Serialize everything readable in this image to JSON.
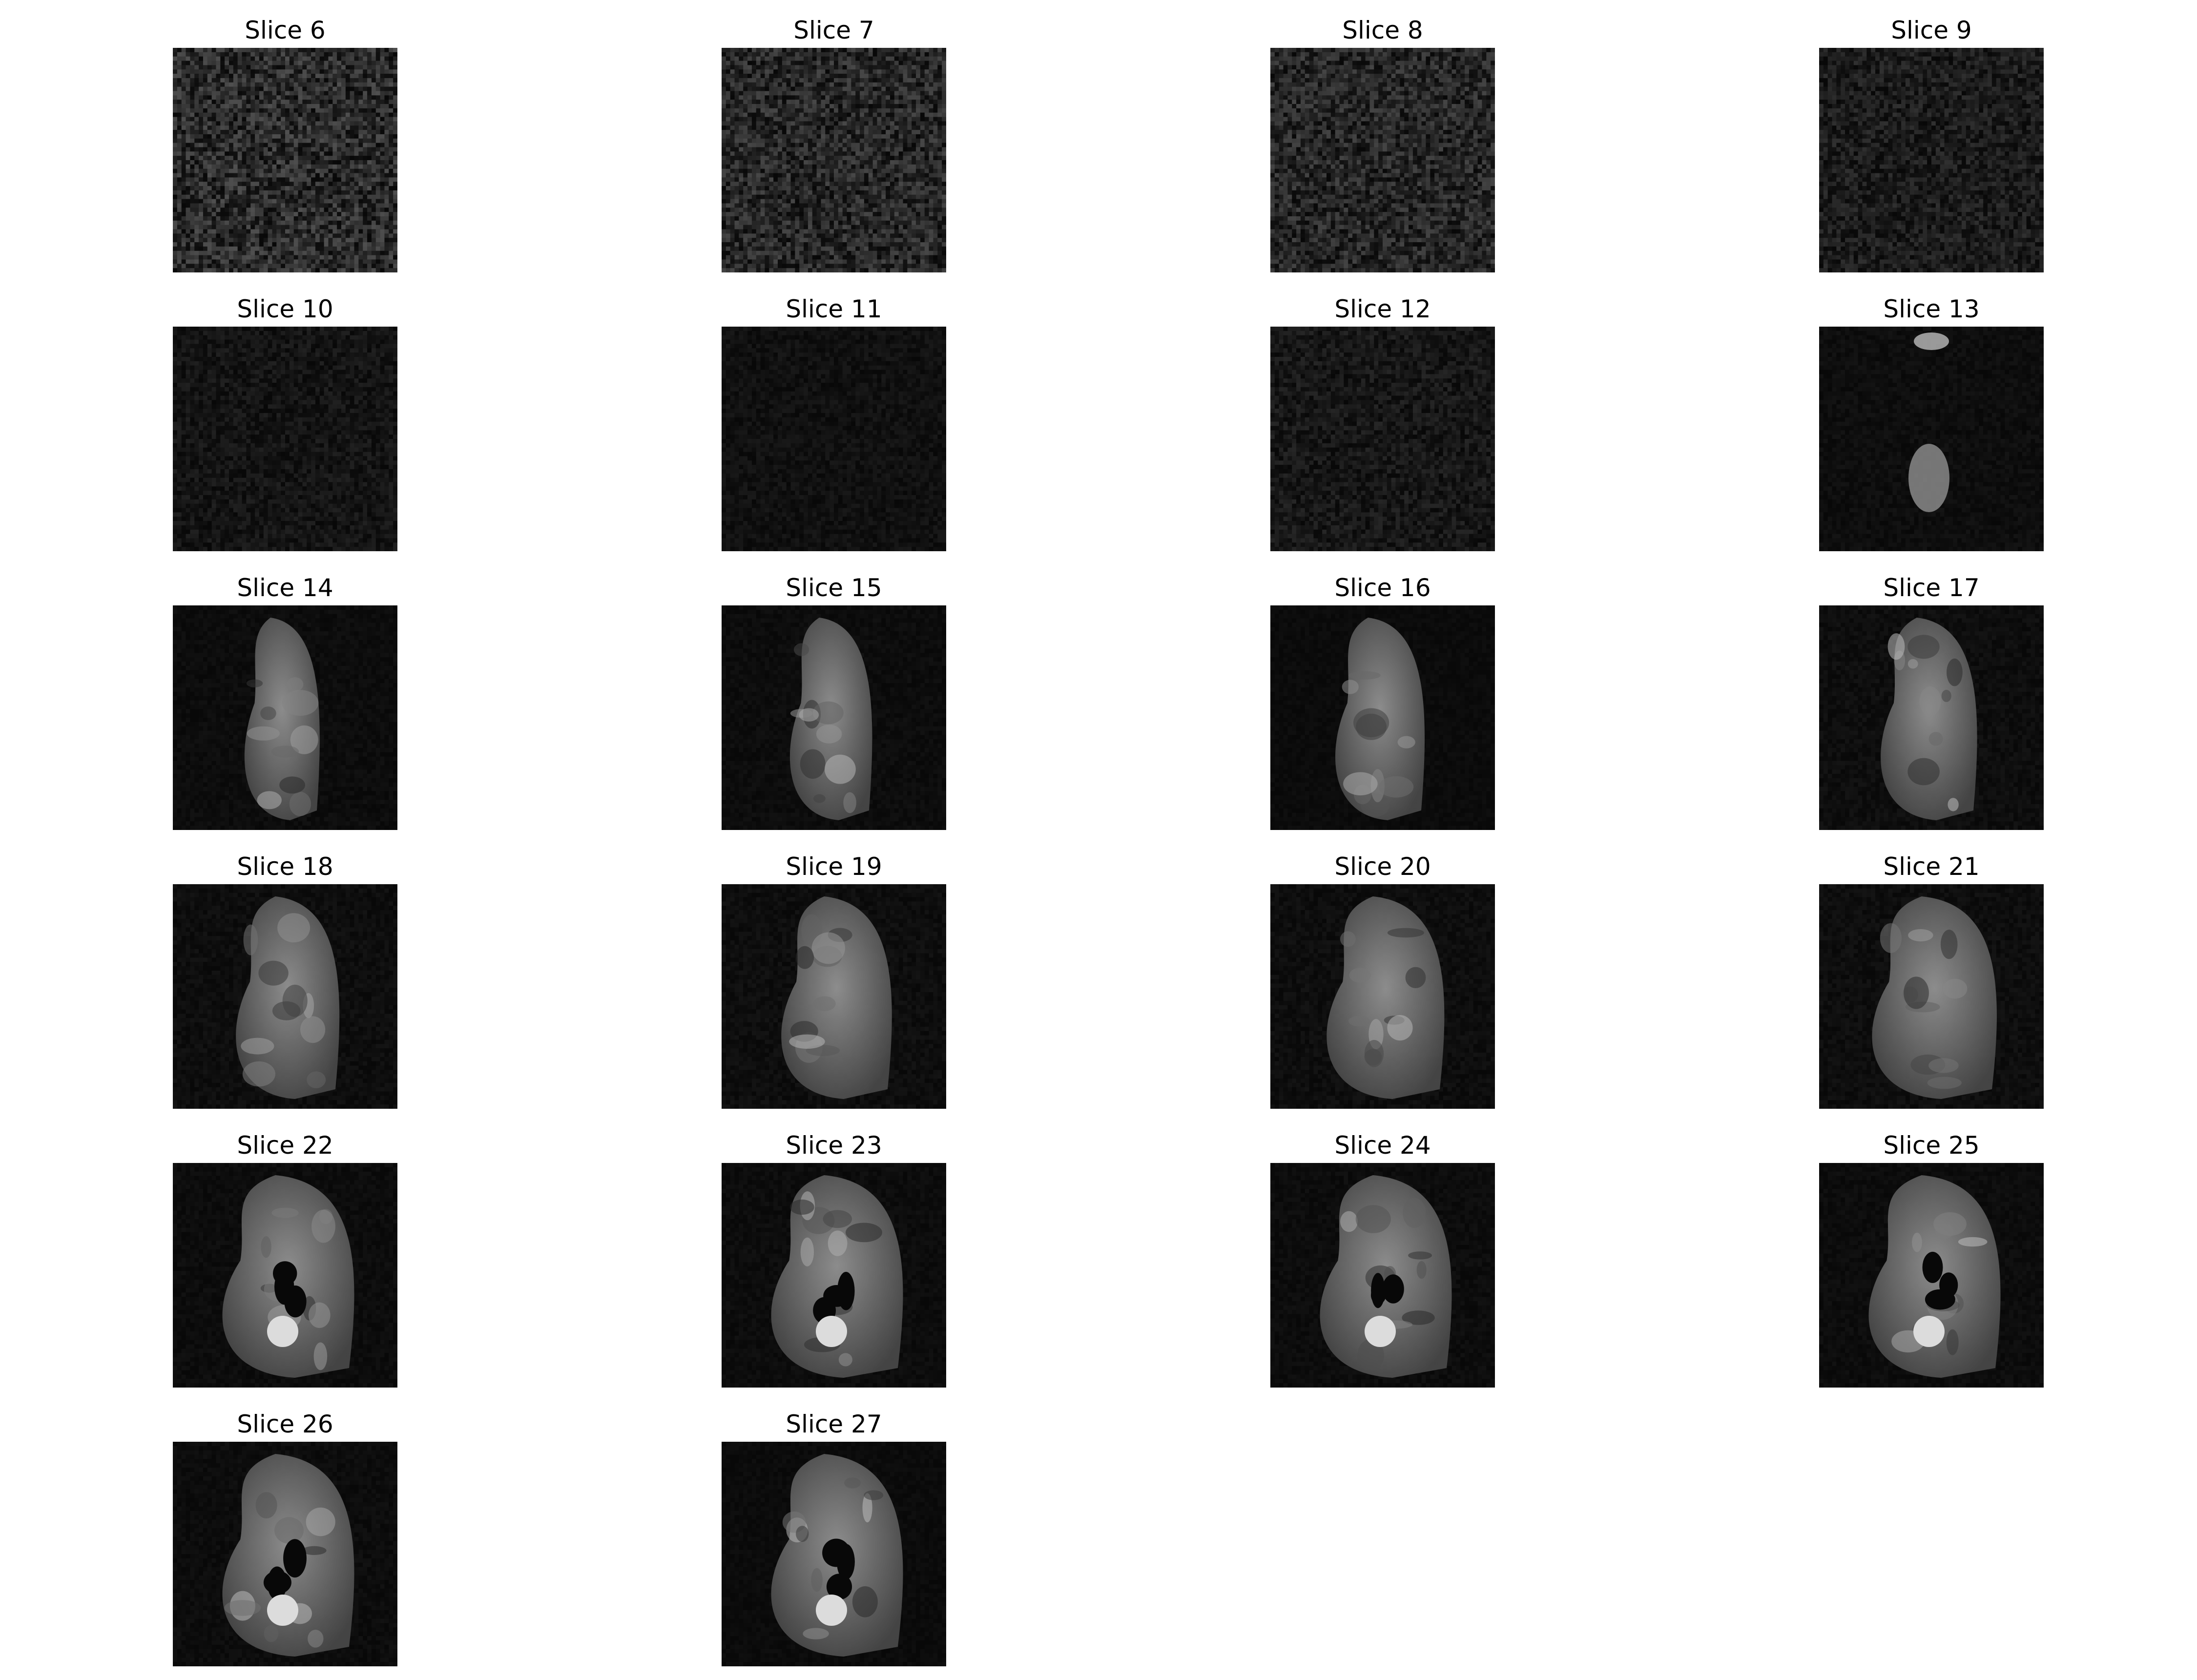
{
  "figure": {
    "panels": [
      {
        "title": "Slice 6",
        "content": "noise",
        "noise_level": 0.28
      },
      {
        "title": "Slice 7",
        "content": "noise",
        "noise_level": 0.25
      },
      {
        "title": "Slice 8",
        "content": "noise",
        "noise_level": 0.24
      },
      {
        "title": "Slice 9",
        "content": "noise",
        "noise_level": 0.16
      },
      {
        "title": "Slice 10",
        "content": "noise",
        "noise_level": 0.1
      },
      {
        "title": "Slice 11",
        "content": "noise",
        "noise_level": 0.07
      },
      {
        "title": "Slice 12",
        "content": "noise",
        "noise_level": 0.12
      },
      {
        "title": "Slice 13",
        "content": "faint",
        "noise_level": 0.05
      },
      {
        "title": "Slice 14",
        "content": "body",
        "noise_level": 0.04
      },
      {
        "title": "Slice 15",
        "content": "body",
        "noise_level": 0.04
      },
      {
        "title": "Slice 16",
        "content": "body",
        "noise_level": 0.03
      },
      {
        "title": "Slice 17",
        "content": "body",
        "noise_level": 0.05
      },
      {
        "title": "Slice 18",
        "content": "body",
        "noise_level": 0.05
      },
      {
        "title": "Slice 19",
        "content": "body",
        "noise_level": 0.05
      },
      {
        "title": "Slice 20",
        "content": "body",
        "noise_level": 0.05
      },
      {
        "title": "Slice 21",
        "content": "body",
        "noise_level": 0.05
      },
      {
        "title": "Slice 22",
        "content": "bladder",
        "noise_level": 0.04
      },
      {
        "title": "Slice 23",
        "content": "bladder",
        "noise_level": 0.04
      },
      {
        "title": "Slice 24",
        "content": "bladder",
        "noise_level": 0.04
      },
      {
        "title": "Slice 25",
        "content": "bladder",
        "noise_level": 0.04
      },
      {
        "title": "Slice 26",
        "content": "bladder",
        "noise_level": 0.04
      },
      {
        "title": "Slice 27",
        "content": "bladder",
        "noise_level": 0.03
      }
    ],
    "columns": 4,
    "colormap": "gray"
  }
}
